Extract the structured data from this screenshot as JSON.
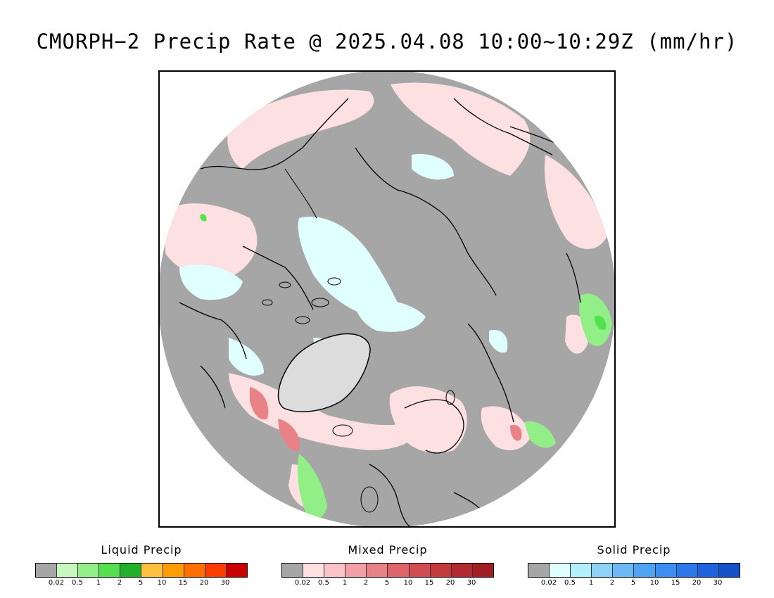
{
  "title": "CMORPH−2 Precip Rate @ 2025.04.08 10:00~10:29Z (mm/hr)",
  "map": {
    "projection": "north polar stereographic",
    "background_color": "#a6a6a6",
    "coastline_color": "#000000"
  },
  "legends": [
    {
      "name": "Liquid Precip",
      "colors": [
        "#a6a6a6",
        "#c8f7c0",
        "#92ee87",
        "#55e04f",
        "#22b02a",
        "#ffbf3f",
        "#ff9d00",
        "#ff7000",
        "#ff3c00",
        "#c80000"
      ],
      "ticks": [
        "0.02",
        "0.5",
        "1",
        "2",
        "5",
        "10",
        "15",
        "20",
        "30"
      ]
    },
    {
      "name": "Mixed Precip",
      "colors": [
        "#a6a6a6",
        "#fde0e2",
        "#fbc3c6",
        "#f2a0a5",
        "#e98286",
        "#de6469",
        "#d24d52",
        "#c33a3f",
        "#b22a2f",
        "#9e1e24"
      ],
      "ticks": [
        "0.02",
        "0.5",
        "1",
        "2",
        "5",
        "10",
        "15",
        "20",
        "30"
      ]
    },
    {
      "name": "Solid Precip",
      "colors": [
        "#a6a6a6",
        "#e0ffff",
        "#b4f0fb",
        "#8fd2f7",
        "#6cb9f5",
        "#4fa3f2",
        "#3c8ef0",
        "#2b78e8",
        "#1e62dc",
        "#1450c8"
      ],
      "ticks": [
        "0.02",
        "0.5",
        "1",
        "2",
        "5",
        "10",
        "15",
        "20",
        "30"
      ]
    }
  ]
}
